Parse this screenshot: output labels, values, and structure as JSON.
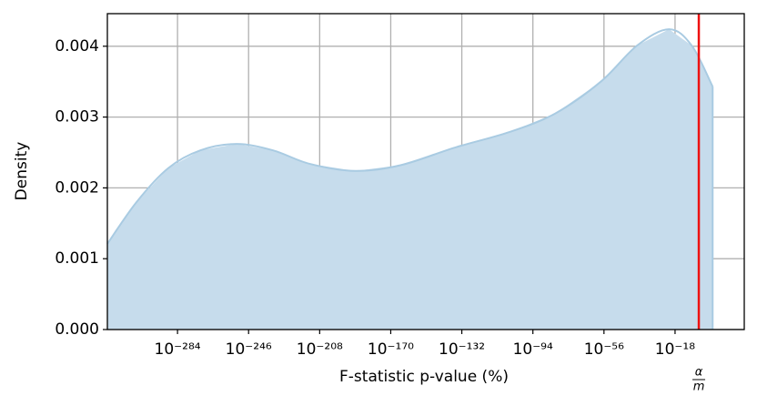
{
  "chart_data": {
    "type": "area",
    "x_label": "F-statistic p-value (%)",
    "y_label": "Density",
    "x": [
      -321.5,
      -305.9,
      -288.9,
      -271.8,
      -252.4,
      -232.9,
      -213.4,
      -189.1,
      -164.8,
      -135.6,
      -106.4,
      -82.1,
      -57.7,
      -38.3,
      -21.2,
      -9.1,
      2.1
    ],
    "values": [
      0.00121,
      0.0018,
      0.00228,
      0.00253,
      0.00262,
      0.00253,
      0.00234,
      0.00224,
      0.00232,
      0.00257,
      0.00279,
      0.00305,
      0.0035,
      0.00401,
      0.00424,
      0.00401,
      0.00343
    ],
    "color": "#c6dcec",
    "line_color": "#a9cbe2",
    "xlim": [
      -321.5,
      19
    ],
    "ylim": [
      0,
      0.00446
    ],
    "xticks": [
      {
        "value": -284,
        "label": "10⁻²⁸⁴"
      },
      {
        "value": -246,
        "label": "10⁻²⁴⁶"
      },
      {
        "value": -208,
        "label": "10⁻²⁰⁸"
      },
      {
        "value": -170,
        "label": "10⁻¹⁷⁰"
      },
      {
        "value": -132,
        "label": "10⁻¹³²"
      },
      {
        "value": -94,
        "label": "10⁻⁹⁴"
      },
      {
        "value": -56,
        "label": "10⁻⁵⁶"
      },
      {
        "value": -18,
        "label": "10⁻¹⁸"
      }
    ],
    "yticks": [
      {
        "value": 0,
        "label": "0.000"
      },
      {
        "value": 0.001,
        "label": "0.001"
      },
      {
        "value": 0.002,
        "label": "0.002"
      },
      {
        "value": 0.003,
        "label": "0.003"
      },
      {
        "value": 0.004,
        "label": "0.004"
      }
    ],
    "grid": true,
    "vline": {
      "x": -5.3,
      "color": "#ee1111",
      "numerator": "α",
      "denominator": "m"
    }
  }
}
